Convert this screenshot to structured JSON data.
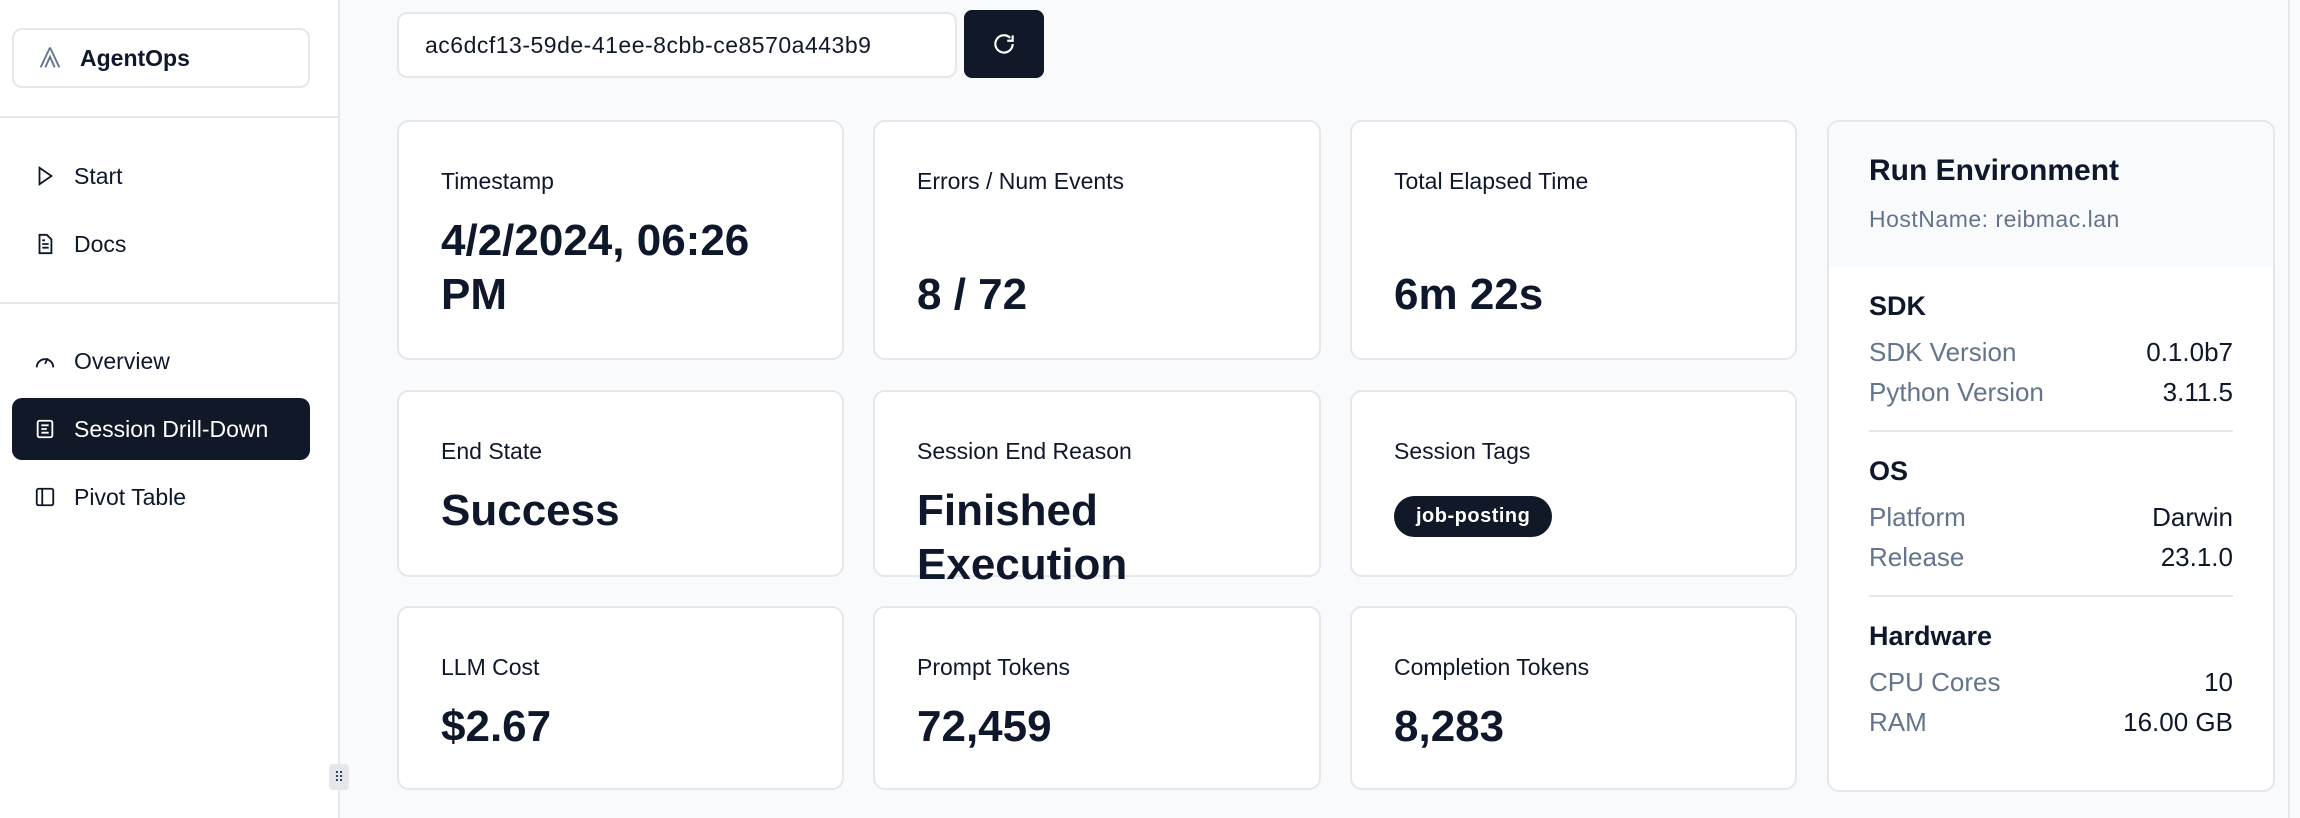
{
  "sidebar": {
    "logo": "AgentOps",
    "items": [
      {
        "label": "Start",
        "icon": "play-icon"
      },
      {
        "label": "Docs",
        "icon": "document-icon"
      },
      {
        "label": "Overview",
        "icon": "gauge-icon"
      },
      {
        "label": "Session Drill-Down",
        "icon": "list-icon",
        "active": true
      },
      {
        "label": "Pivot Table",
        "icon": "panel-icon"
      }
    ]
  },
  "search": {
    "value": "ac6dcf13-59de-41ee-8cbb-ce8570a443b9"
  },
  "cards": [
    {
      "label": "Timestamp",
      "value": "4/2/2024, 06:26 PM"
    },
    {
      "label": "Errors / Num Events",
      "value": "8 / 72"
    },
    {
      "label": "Total Elapsed Time",
      "value": "6m 22s"
    },
    {
      "label": "End State",
      "value": "Success"
    },
    {
      "label": "Session End Reason",
      "value": "Finished Execution"
    },
    {
      "label": "Session Tags",
      "tags": [
        "job-posting"
      ]
    },
    {
      "label": "LLM Cost",
      "value": "$2.67"
    },
    {
      "label": "Prompt Tokens",
      "value": "72,459"
    },
    {
      "label": "Completion Tokens",
      "value": "8,283"
    }
  ],
  "env": {
    "title": "Run Environment",
    "host": "HostName: reibmac.lan",
    "sections": [
      {
        "title": "SDK",
        "rows": [
          {
            "k": "SDK Version",
            "v": "0.1.0b7"
          },
          {
            "k": "Python Version",
            "v": "3.11.5"
          }
        ]
      },
      {
        "title": "OS",
        "rows": [
          {
            "k": "Platform",
            "v": "Darwin"
          },
          {
            "k": "Release",
            "v": "23.1.0"
          }
        ]
      },
      {
        "title": "Hardware",
        "rows": [
          {
            "k": "CPU Cores",
            "v": "10"
          },
          {
            "k": "RAM",
            "v": "16.00 GB"
          }
        ]
      }
    ]
  },
  "colors": {
    "primary": "#111827",
    "muted": "#64748b",
    "border": "#e5e7eb",
    "background": "#f8fafc"
  }
}
